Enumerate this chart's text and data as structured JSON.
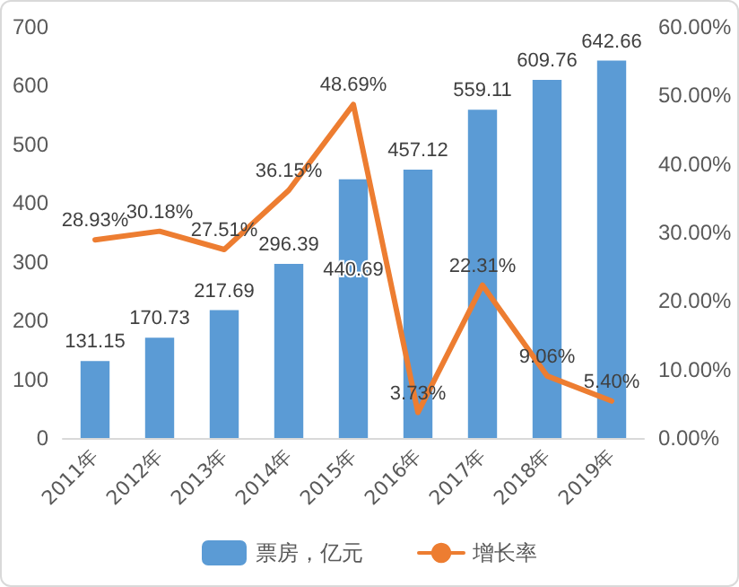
{
  "chart_data": {
    "type": "bar",
    "categories": [
      "2011年",
      "2012年",
      "2013年",
      "2014年",
      "2015年",
      "2016年",
      "2017年",
      "2018年",
      "2019年"
    ],
    "series": [
      {
        "name": "票房，亿元",
        "color": "#5b9bd5",
        "values": [
          131.15,
          170.73,
          217.69,
          296.39,
          440.69,
          457.12,
          559.11,
          609.76,
          642.66
        ],
        "value_labels": [
          "131.15",
          "170.73",
          "217.69",
          "296.39",
          "440.69",
          "457.12",
          "559.11",
          "609.76",
          "642.66"
        ]
      },
      {
        "name": "增长率",
        "type": "line",
        "axis": "y2",
        "color": "#ed7d31",
        "values": [
          28.93,
          30.18,
          27.51,
          36.15,
          48.69,
          3.73,
          22.31,
          9.06,
          5.4
        ],
        "value_labels": [
          "28.93%",
          "30.18%",
          "27.51%",
          "36.15%",
          "48.69%",
          "3.73%",
          "22.31%",
          "9.06%",
          "5.40%"
        ]
      }
    ],
    "ylim": [
      0,
      700
    ],
    "yticks": [
      0,
      100,
      200,
      300,
      400,
      500,
      600,
      700
    ],
    "y2lim": [
      0,
      60
    ],
    "y2ticks": [
      {
        "value": 0,
        "label": "0.00%"
      },
      {
        "value": 10,
        "label": "10.00%"
      },
      {
        "value": 20,
        "label": "20.00%"
      },
      {
        "value": 30,
        "label": "30.00%"
      },
      {
        "value": 40,
        "label": "40.00%"
      },
      {
        "value": 50,
        "label": "50.00%"
      },
      {
        "value": 60,
        "label": "60.00%"
      }
    ],
    "grid": false,
    "legend": "bottom",
    "marker": "none",
    "line_style": "solid"
  }
}
